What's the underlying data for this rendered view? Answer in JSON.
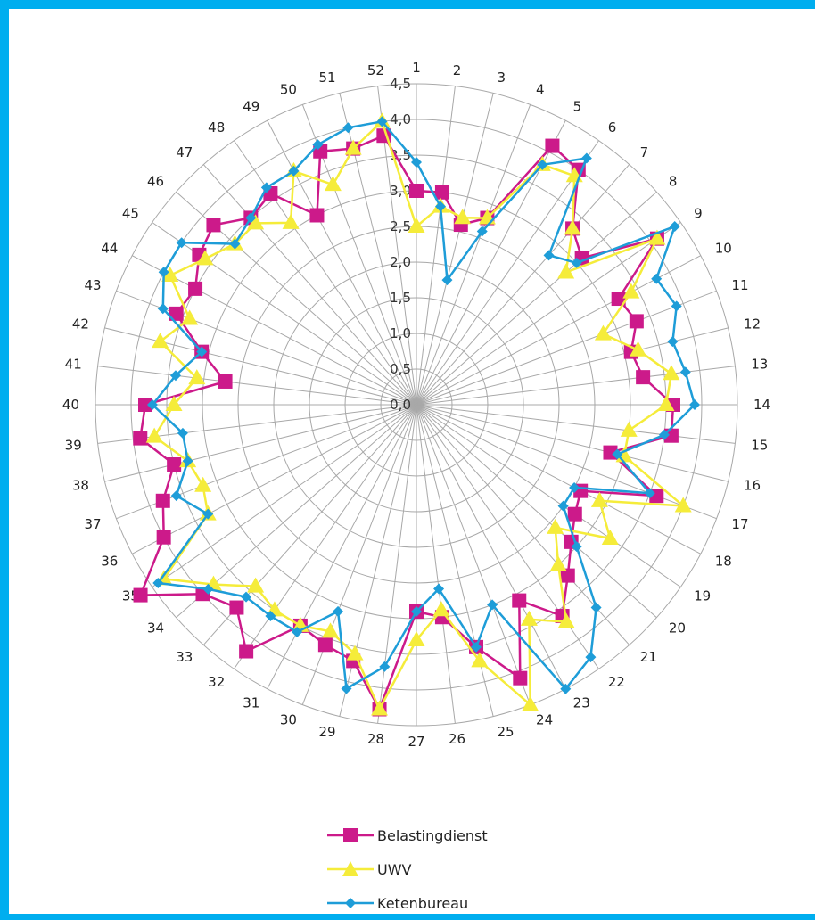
{
  "chart_data": {
    "type": "radar",
    "categories": [
      "1",
      "2",
      "3",
      "4",
      "5",
      "6",
      "7",
      "8",
      "9",
      "10",
      "11",
      "12",
      "13",
      "14",
      "15",
      "16",
      "17",
      "18",
      "19",
      "20",
      "21",
      "22",
      "23",
      "24",
      "25",
      "26",
      "27",
      "28",
      "29",
      "30",
      "31",
      "32",
      "33",
      "34",
      "35",
      "36",
      "37",
      "38",
      "39",
      "40",
      "41",
      "42",
      "43",
      "44",
      "45",
      "46",
      "47",
      "48",
      "49",
      "50",
      "51",
      "52"
    ],
    "radial_ticks": [
      "0,0",
      "0,5",
      "1,0",
      "1,5",
      "2,0",
      "2,5",
      "3,0",
      "3,5",
      "4,0",
      "4,5"
    ],
    "rlim": [
      0,
      4.5
    ],
    "grid": true,
    "legend_position": "bottom",
    "series": [
      {
        "name": "Belastingdienst",
        "color": "#cc1a8a",
        "marker": "square",
        "values": [
          3.0,
          3.0,
          2.6,
          2.8,
          4.1,
          4.0,
          3.3,
          3.1,
          4.1,
          3.2,
          3.3,
          3.1,
          3.2,
          3.6,
          3.6,
          2.8,
          3.6,
          2.6,
          2.7,
          2.9,
          3.2,
          3.6,
          3.1,
          4.1,
          3.5,
          3.0,
          2.9,
          4.3,
          3.7,
          3.6,
          3.5,
          4.2,
          3.8,
          4.0,
          4.7,
          4.0,
          3.8,
          3.5,
          3.9,
          3.8,
          2.7,
          3.1,
          3.6,
          3.5,
          3.7,
          3.8,
          3.5,
          3.6,
          3.0,
          3.8,
          3.7,
          3.8
        ]
      },
      {
        "name": "UWV",
        "color": "#f5ec3a",
        "marker": "triangle",
        "values": [
          2.5,
          2.8,
          2.7,
          2.8,
          3.8,
          3.9,
          3.3,
          2.8,
          4.1,
          3.4,
          2.8,
          3.2,
          3.6,
          3.5,
          3.0,
          3.0,
          4.0,
          2.9,
          3.3,
          2.6,
          3.0,
          3.7,
          3.4,
          4.5,
          3.7,
          2.9,
          3.3,
          4.3,
          3.6,
          3.4,
          3.5,
          3.5,
          3.4,
          3.8,
          4.3,
          3.3,
          3.2,
          3.3,
          3.7,
          3.4,
          3.1,
          3.7,
          3.4,
          3.9,
          3.6,
          3.4,
          3.4,
          3.1,
          3.7,
          3.3,
          3.7,
          4.0
        ]
      },
      {
        "name": "Ketenbureau",
        "color": "#1e9dd8",
        "marker": "diamond",
        "values": [
          3.4,
          2.8,
          1.8,
          2.6,
          3.8,
          4.2,
          2.8,
          3.0,
          4.4,
          3.8,
          3.9,
          3.7,
          3.8,
          3.9,
          3.5,
          2.9,
          3.5,
          2.5,
          2.5,
          3.0,
          3.8,
          4.3,
          4.5,
          3.0,
          3.5,
          2.6,
          2.9,
          3.7,
          4.1,
          3.1,
          3.6,
          3.6,
          3.6,
          3.9,
          4.4,
          3.3,
          3.6,
          3.3,
          3.3,
          3.7,
          3.4,
          3.1,
          3.8,
          4.0,
          4.0,
          3.4,
          3.5,
          3.7,
          3.7,
          3.9,
          4.0,
          4.0
        ]
      }
    ]
  }
}
